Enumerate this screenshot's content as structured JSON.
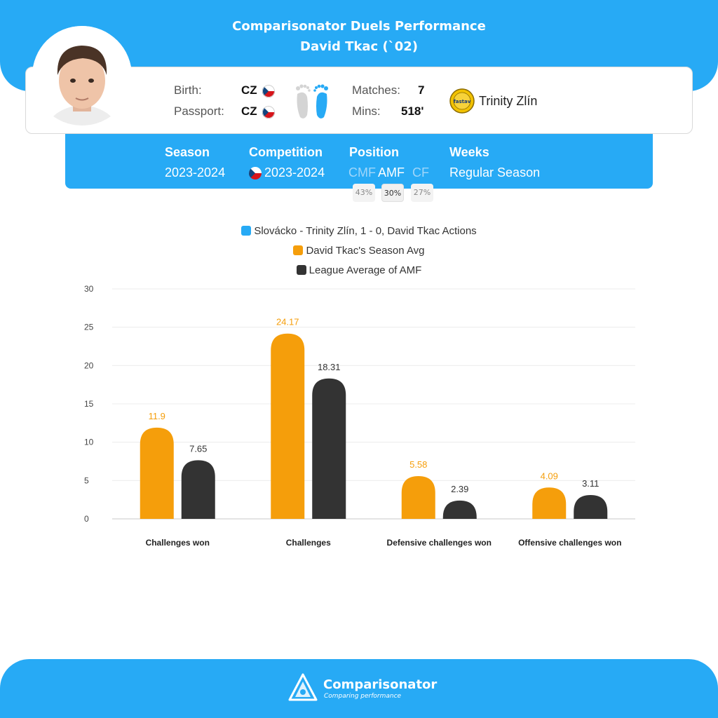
{
  "header": {
    "title": "Comparisonator Duels Performance",
    "player": "David Tkac (`02)"
  },
  "info": {
    "birth_label": "Birth:",
    "birth_value": "CZ",
    "passport_label": "Passport:",
    "passport_value": "CZ",
    "matches_label": "Matches:",
    "matches_value": "7",
    "mins_label": "Mins:",
    "mins_value": "518'",
    "club": "Trinity Zlín",
    "club_logo_text": "fastav"
  },
  "season_bar": {
    "season_label": "Season",
    "season_value": "2023-2024",
    "competition_label": "Competition",
    "competition_value": "2023-2024",
    "position_label": "Position",
    "positions": [
      {
        "name": "CMF",
        "pct": "43%"
      },
      {
        "name": "AMF",
        "pct": "30%"
      },
      {
        "name": "CF",
        "pct": "27%"
      }
    ],
    "weeks_label": "Weeks",
    "weeks_value": "Regular Season"
  },
  "colors": {
    "accent": "#27aaf5",
    "season_avg": "#f59e0b",
    "league_avg": "#333333"
  },
  "chart_data": {
    "type": "bar",
    "legend": [
      "Slovácko - Trinity Zlín, 1 - 0, David Tkac Actions",
      "David Tkac's Season Avg",
      "League Average of AMF"
    ],
    "categories": [
      "Challenges won",
      "Challenges",
      "Defensive challenges won",
      "Offensive challenges won"
    ],
    "series": [
      {
        "name": "David Tkac's Season Avg",
        "color": "#f59e0b",
        "values": [
          11.9,
          24.17,
          5.58,
          4.09
        ]
      },
      {
        "name": "League Average of AMF",
        "color": "#333333",
        "values": [
          7.65,
          18.31,
          2.39,
          3.11
        ]
      }
    ],
    "value_labels": [
      [
        "11.9",
        "24.17",
        "5.58",
        "4.09"
      ],
      [
        "7.65",
        "18.31",
        "2.39",
        "3.11"
      ]
    ],
    "yticks": [
      "0",
      "5",
      "10",
      "15",
      "20",
      "25",
      "30"
    ],
    "ylim": [
      0,
      30
    ],
    "grid": true
  },
  "footer": {
    "brand": "Comparisonator",
    "tagline": "Comparing performance"
  }
}
